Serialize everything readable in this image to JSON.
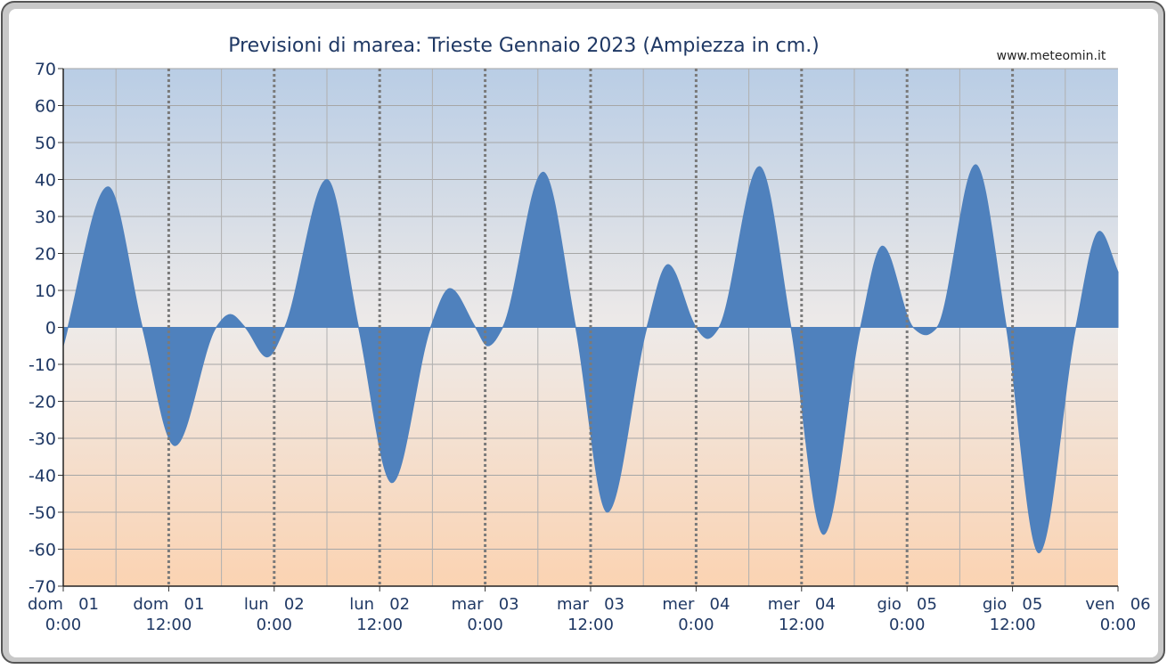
{
  "chart_data": {
    "type": "area",
    "title": "Previsioni di marea: Trieste Gennaio 2023 (Ampiezza in cm.)",
    "source": "www.meteomin.it",
    "x": [
      0,
      5.1,
      9.0,
      12.7,
      17.4,
      19.0,
      20.7,
      23.2,
      25.2,
      30.0,
      33.6,
      37.4,
      41.8,
      44.0,
      46.9,
      48.3,
      50.0,
      54.6,
      58.3,
      61.9,
      66.4,
      68.8,
      72.0,
      73.3,
      74.6,
      79.2,
      82.8,
      86.5,
      90.7,
      93.2,
      96.7,
      98.1,
      99.4,
      103.8,
      107.3,
      111.0,
      115.2,
      117.9,
      120
    ],
    "series": [
      {
        "name": "Ampiezza",
        "color": "#4f81bd",
        "values": [
          -5,
          38,
          0,
          -32,
          0,
          3.5,
          0,
          -8,
          0,
          40,
          0,
          -42,
          0,
          10.5,
          0,
          -5,
          0,
          42,
          0,
          -50,
          0,
          17,
          0,
          -3,
          0,
          43.5,
          0,
          -56,
          0,
          22,
          0,
          -2,
          0,
          44,
          0,
          -61,
          0,
          26,
          15
        ]
      }
    ],
    "xlim": [
      0,
      120
    ],
    "xticks": [
      {
        "value": 0,
        "label": "dom   01\n0:00"
      },
      {
        "value": 12,
        "label": "dom   01\n12:00"
      },
      {
        "value": 24,
        "label": "lun   02\n0:00"
      },
      {
        "value": 36,
        "label": "lun   02\n12:00"
      },
      {
        "value": 48,
        "label": "mar   03\n0:00"
      },
      {
        "value": 60,
        "label": "mar   03\n12:00"
      },
      {
        "value": 72,
        "label": "mer   04\n0:00"
      },
      {
        "value": 84,
        "label": "mer   04\n12:00"
      },
      {
        "value": 96,
        "label": "gio   05\n0:00"
      },
      {
        "value": 108,
        "label": "gio   05\n12:00"
      },
      {
        "value": 120,
        "label": "ven   06\n0:00"
      }
    ],
    "xminorticks": [
      6,
      18,
      30,
      42,
      54,
      66,
      78,
      90,
      102,
      114
    ],
    "ylim": [
      -70,
      70
    ],
    "yticks": [
      -70,
      -60,
      -50,
      -40,
      -30,
      -20,
      -10,
      0,
      10,
      20,
      30,
      40,
      50,
      60,
      70
    ],
    "grid": true
  }
}
